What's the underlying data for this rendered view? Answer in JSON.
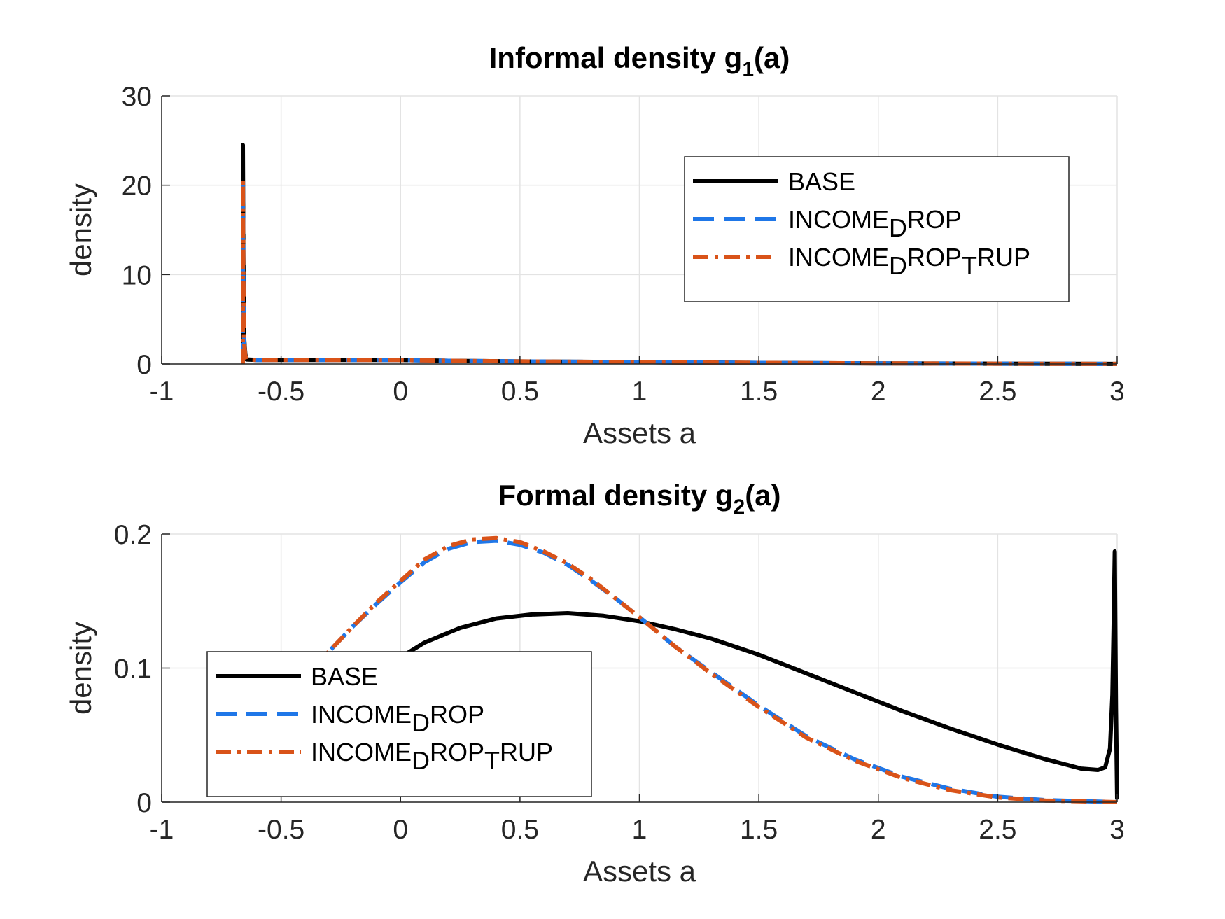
{
  "chart_data": [
    {
      "type": "line",
      "title": "Informal density g1(a)",
      "title_parts": {
        "prefix": "Informal density g",
        "sub": "1",
        "suffix": "(a)"
      },
      "xlabel": "Assets a",
      "ylabel": "density",
      "xlim": [
        -1,
        3
      ],
      "ylim": [
        0,
        30
      ],
      "xticks": [
        "-1",
        "-0.5",
        "0",
        "0.5",
        "1",
        "1.5",
        "2",
        "2.5",
        "3"
      ],
      "yticks": [
        "0",
        "10",
        "20",
        "30"
      ],
      "grid": true,
      "legend_position": "top-right",
      "series": [
        {
          "name": "BASE",
          "name_parts": [
            [
              "BASE",
              ""
            ]
          ],
          "color": "#000000",
          "style": "solid",
          "x": [
            -0.66,
            -0.66,
            -0.658,
            -0.655,
            -0.65,
            -0.645,
            -0.6,
            -0.4,
            -0.2,
            0,
            0.2,
            0.5,
            1,
            1.5,
            2,
            2.5,
            3
          ],
          "y": [
            0,
            24.5,
            12,
            3,
            1.2,
            0.5,
            0.45,
            0.45,
            0.45,
            0.45,
            0.35,
            0.28,
            0.2,
            0.12,
            0.06,
            0.03,
            0.01
          ]
        },
        {
          "name": "INCOMEDROP",
          "name_parts": [
            [
              "INCOME",
              ""
            ],
            [
              "D",
              "sub"
            ],
            [
              "ROP",
              ""
            ]
          ],
          "color": "#1f77e8",
          "style": "dashed",
          "x": [
            -0.66,
            -0.66,
            -0.658,
            -0.655,
            -0.65,
            -0.645,
            -0.6,
            -0.4,
            -0.2,
            0,
            0.2,
            0.5,
            1,
            1.5,
            2,
            2.5,
            3
          ],
          "y": [
            0,
            20.5,
            10,
            2.5,
            1,
            0.5,
            0.45,
            0.45,
            0.45,
            0.45,
            0.35,
            0.28,
            0.2,
            0.12,
            0.06,
            0.03,
            0.01
          ]
        },
        {
          "name": "INCOMEDROPTRUP",
          "name_parts": [
            [
              "INCOME",
              ""
            ],
            [
              "D",
              "sub"
            ],
            [
              "ROP",
              ""
            ],
            [
              "T",
              "sub"
            ],
            [
              "RUP",
              ""
            ]
          ],
          "color": "#d95319",
          "style": "dashdot",
          "x": [
            -0.66,
            -0.66,
            -0.658,
            -0.655,
            -0.65,
            -0.645,
            -0.6,
            -0.4,
            -0.2,
            0,
            0.2,
            0.5,
            1,
            1.5,
            2,
            2.5,
            3
          ],
          "y": [
            0,
            20.5,
            10,
            2.5,
            1,
            0.5,
            0.45,
            0.45,
            0.45,
            0.45,
            0.35,
            0.28,
            0.2,
            0.12,
            0.06,
            0.03,
            0.01
          ]
        }
      ]
    },
    {
      "type": "line",
      "title": "Formal density g2(a)",
      "title_parts": {
        "prefix": "Formal density g",
        "sub": "2",
        "suffix": "(a)"
      },
      "xlabel": "Assets a",
      "ylabel": "density",
      "xlim": [
        -1,
        3
      ],
      "ylim": [
        0,
        0.2
      ],
      "xticks": [
        "-1",
        "-0.5",
        "0",
        "0.5",
        "1",
        "1.5",
        "2",
        "2.5",
        "3"
      ],
      "yticks": [
        "0",
        "0.1",
        "0.2"
      ],
      "grid": true,
      "legend_position": "bottom-left",
      "series": [
        {
          "name": "BASE",
          "name_parts": [
            [
              "BASE",
              ""
            ]
          ],
          "color": "#000000",
          "style": "solid",
          "x": [
            -0.66,
            -0.5,
            -0.3,
            -0.1,
            0,
            0.1,
            0.25,
            0.4,
            0.55,
            0.7,
            0.85,
            1,
            1.15,
            1.3,
            1.5,
            1.7,
            1.9,
            2.1,
            2.3,
            2.5,
            2.7,
            2.85,
            2.92,
            2.95,
            2.97,
            2.98,
            2.985,
            2.99,
            2.995,
            3
          ],
          "y": [
            0.04,
            0.055,
            0.075,
            0.097,
            0.108,
            0.119,
            0.13,
            0.137,
            0.14,
            0.141,
            0.139,
            0.135,
            0.129,
            0.122,
            0.11,
            0.096,
            0.082,
            0.068,
            0.055,
            0.043,
            0.032,
            0.025,
            0.024,
            0.026,
            0.04,
            0.08,
            0.13,
            0.187,
            0.07,
            0.002
          ]
        },
        {
          "name": "INCOMEDROP",
          "name_parts": [
            [
              "INCOME",
              ""
            ],
            [
              "D",
              "sub"
            ],
            [
              "ROP",
              ""
            ]
          ],
          "color": "#1f77e8",
          "style": "dashed",
          "x": [
            -0.66,
            -0.5,
            -0.35,
            -0.2,
            -0.1,
            0,
            0.1,
            0.2,
            0.3,
            0.4,
            0.5,
            0.6,
            0.7,
            0.8,
            0.9,
            1,
            1.15,
            1.3,
            1.5,
            1.7,
            1.9,
            2.1,
            2.3,
            2.5,
            2.7,
            2.9,
            3
          ],
          "y": [
            0.05,
            0.075,
            0.103,
            0.131,
            0.148,
            0.164,
            0.179,
            0.189,
            0.194,
            0.195,
            0.192,
            0.186,
            0.177,
            0.165,
            0.152,
            0.138,
            0.116,
            0.097,
            0.072,
            0.049,
            0.032,
            0.019,
            0.01,
            0.004,
            0.0015,
            0.0005,
            0
          ]
        },
        {
          "name": "INCOMEDROPTRUP",
          "name_parts": [
            [
              "INCOME",
              ""
            ],
            [
              "D",
              "sub"
            ],
            [
              "ROP",
              ""
            ],
            [
              "T",
              "sub"
            ],
            [
              "RUP",
              ""
            ]
          ],
          "color": "#d95319",
          "style": "dashdot",
          "x": [
            -0.66,
            -0.5,
            -0.35,
            -0.2,
            -0.1,
            0,
            0.1,
            0.2,
            0.3,
            0.4,
            0.5,
            0.6,
            0.7,
            0.8,
            0.9,
            1,
            1.15,
            1.3,
            1.5,
            1.7,
            1.9,
            2.1,
            2.3,
            2.5,
            2.7,
            2.9,
            3
          ],
          "y": [
            0.05,
            0.075,
            0.103,
            0.131,
            0.149,
            0.165,
            0.181,
            0.191,
            0.196,
            0.197,
            0.194,
            0.187,
            0.178,
            0.166,
            0.152,
            0.138,
            0.116,
            0.096,
            0.071,
            0.048,
            0.031,
            0.018,
            0.009,
            0.0035,
            0.0012,
            0.0004,
            0
          ]
        }
      ]
    }
  ]
}
